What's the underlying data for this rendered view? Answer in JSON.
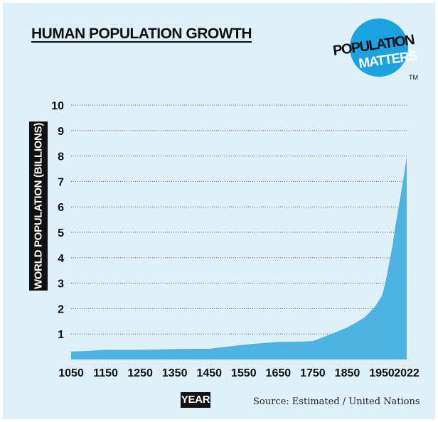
{
  "title": "HUMAN POPULATION GROWTH",
  "logo": {
    "line1": "POPULATION",
    "line2": "MATTERS",
    "tm": "TM",
    "color": "#1aa3e0"
  },
  "source": "Source: Estimated / United Nations",
  "colors": {
    "background": "#dff0f8",
    "area": "#4db3e0",
    "grid": "#666666"
  },
  "chart_data": {
    "type": "area",
    "title": "HUMAN POPULATION GROWTH",
    "xlabel": "YEAR",
    "ylabel": "WORLD POPULATION (BILLIONS)",
    "xlim": [
      1050,
      2022
    ],
    "ylim": [
      0,
      10
    ],
    "x_ticks": [
      1050,
      1150,
      1250,
      1350,
      1450,
      1550,
      1650,
      1750,
      1850,
      1950,
      2022
    ],
    "y_ticks": [
      1,
      2,
      3,
      4,
      5,
      6,
      7,
      8,
      9,
      10
    ],
    "grid": true,
    "series": [
      {
        "x": [
          1050,
          1100,
          1150,
          1200,
          1250,
          1300,
          1350,
          1400,
          1450,
          1500,
          1550,
          1600,
          1650,
          1700,
          1750,
          1800,
          1850,
          1900,
          1930,
          1950,
          1960,
          1970,
          1980,
          1990,
          2000,
          2010,
          2022
        ],
        "y": [
          0.31,
          0.34,
          0.38,
          0.38,
          0.38,
          0.39,
          0.41,
          0.42,
          0.42,
          0.5,
          0.58,
          0.64,
          0.69,
          0.7,
          0.72,
          0.98,
          1.26,
          1.65,
          2.07,
          2.5,
          3.0,
          3.7,
          4.4,
          5.3,
          6.1,
          6.9,
          7.95
        ]
      }
    ]
  }
}
